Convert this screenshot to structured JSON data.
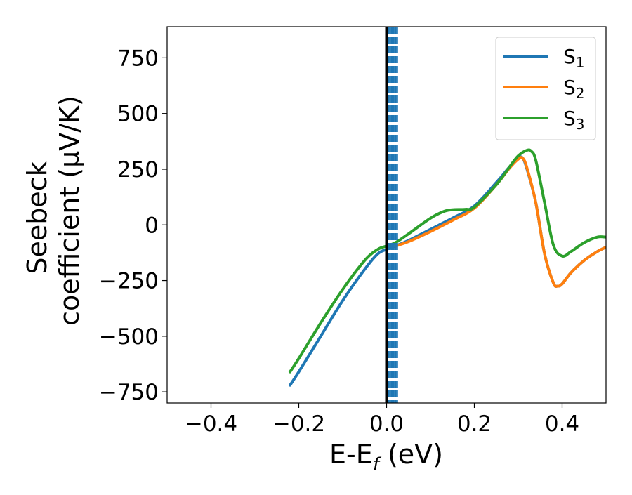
{
  "chart_data": {
    "type": "line",
    "xlabel": "E-E",
    "xlabel_sub": "f",
    "xlabel_unit": " (eV)",
    "ylabel_line1": "Seebeck",
    "ylabel_line2": "coefficient  (μV/K)",
    "xlim": [
      -0.5,
      0.5
    ],
    "ylim": [
      -800,
      890
    ],
    "x_ticks": [
      {
        "value": -0.4,
        "label": "−0.4"
      },
      {
        "value": -0.2,
        "label": "−0.2"
      },
      {
        "value": 0.0,
        "label": "0.0"
      },
      {
        "value": 0.2,
        "label": "0.2"
      },
      {
        "value": 0.4,
        "label": "0.4"
      }
    ],
    "y_ticks": [
      {
        "value": 750,
        "label": "750"
      },
      {
        "value": 500,
        "label": "500"
      },
      {
        "value": 250,
        "label": "250"
      },
      {
        "value": 0,
        "label": "0"
      },
      {
        "value": -250,
        "label": "−250"
      },
      {
        "value": -500,
        "label": "−500"
      },
      {
        "value": -750,
        "label": "−750"
      }
    ],
    "grid": false,
    "legend_position": "top-right",
    "vertical_solid_line": {
      "x": 0.0,
      "color": "#000000"
    },
    "vertical_dashed_lines": {
      "x": [
        0.004,
        0.008,
        0.012,
        0.016,
        0.02,
        0.024
      ],
      "color": "#1f77b4"
    },
    "series": [
      {
        "name": "S",
        "name_sub": "1",
        "color": "#1f77b4",
        "x": [
          -0.22,
          -0.2,
          -0.15,
          -0.1,
          -0.05,
          -0.02,
          0.0,
          0.02,
          0.05,
          0.1,
          0.15,
          0.2,
          0.25,
          0.28,
          0.3,
          0.31,
          0.32,
          0.34,
          0.36,
          0.38,
          0.39,
          0.4,
          0.42,
          0.45,
          0.48,
          0.5
        ],
        "values": [
          -720,
          -660,
          -500,
          -340,
          -200,
          -130,
          -110,
          -95,
          -70,
          -20,
          30,
          85,
          190,
          260,
          300,
          300,
          250,
          100,
          -130,
          -260,
          -275,
          -265,
          -215,
          -160,
          -120,
          -100
        ]
      },
      {
        "name": "S",
        "name_sub": "2",
        "color": "#ff7f0e",
        "x": [
          0.02,
          0.05,
          0.1,
          0.15,
          0.2,
          0.25,
          0.28,
          0.3,
          0.31,
          0.32,
          0.34,
          0.36,
          0.38,
          0.39,
          0.4,
          0.42,
          0.45,
          0.48,
          0.5
        ],
        "values": [
          -95,
          -75,
          -30,
          20,
          75,
          180,
          255,
          295,
          300,
          255,
          100,
          -130,
          -260,
          -275,
          -265,
          -215,
          -160,
          -120,
          -100
        ]
      },
      {
        "name": "S",
        "name_sub": "3",
        "color": "#2ca02c",
        "x": [
          -0.22,
          -0.2,
          -0.15,
          -0.1,
          -0.05,
          -0.02,
          0.0,
          0.02,
          0.05,
          0.1,
          0.13,
          0.15,
          0.18,
          0.2,
          0.25,
          0.28,
          0.3,
          0.32,
          0.33,
          0.34,
          0.36,
          0.38,
          0.4,
          0.42,
          0.45,
          0.48,
          0.5
        ],
        "values": [
          -660,
          -600,
          -440,
          -290,
          -160,
          -110,
          -95,
          -80,
          -40,
          30,
          60,
          68,
          70,
          80,
          180,
          260,
          310,
          335,
          330,
          290,
          100,
          -90,
          -140,
          -120,
          -80,
          -55,
          -55
        ]
      }
    ]
  }
}
